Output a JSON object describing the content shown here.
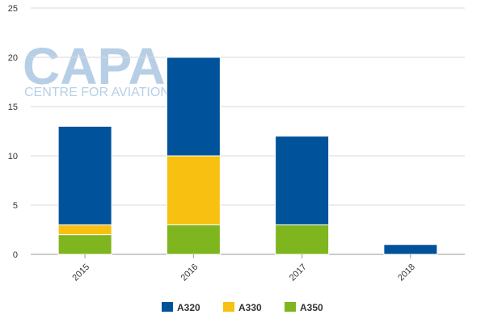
{
  "watermark": {
    "brand": "CAPA",
    "tagline": "CENTRE FOR AVIATION"
  },
  "chart_data": {
    "type": "bar",
    "stacked": true,
    "categories": [
      "2015",
      "2016",
      "2017",
      "2018"
    ],
    "series": [
      {
        "name": "A350",
        "color": "#7fb51f",
        "values": [
          2,
          3,
          3,
          0
        ]
      },
      {
        "name": "A330",
        "color": "#f8c011",
        "values": [
          1,
          7,
          0,
          0
        ]
      },
      {
        "name": "A320",
        "color": "#00529b",
        "values": [
          10,
          10,
          9,
          1
        ]
      }
    ],
    "legend_order": [
      "A320",
      "A330",
      "A350"
    ],
    "ylim": [
      0,
      25
    ],
    "yticks": [
      0,
      5,
      10,
      15,
      20,
      25
    ],
    "grid": true,
    "legend_position": "bottom"
  }
}
